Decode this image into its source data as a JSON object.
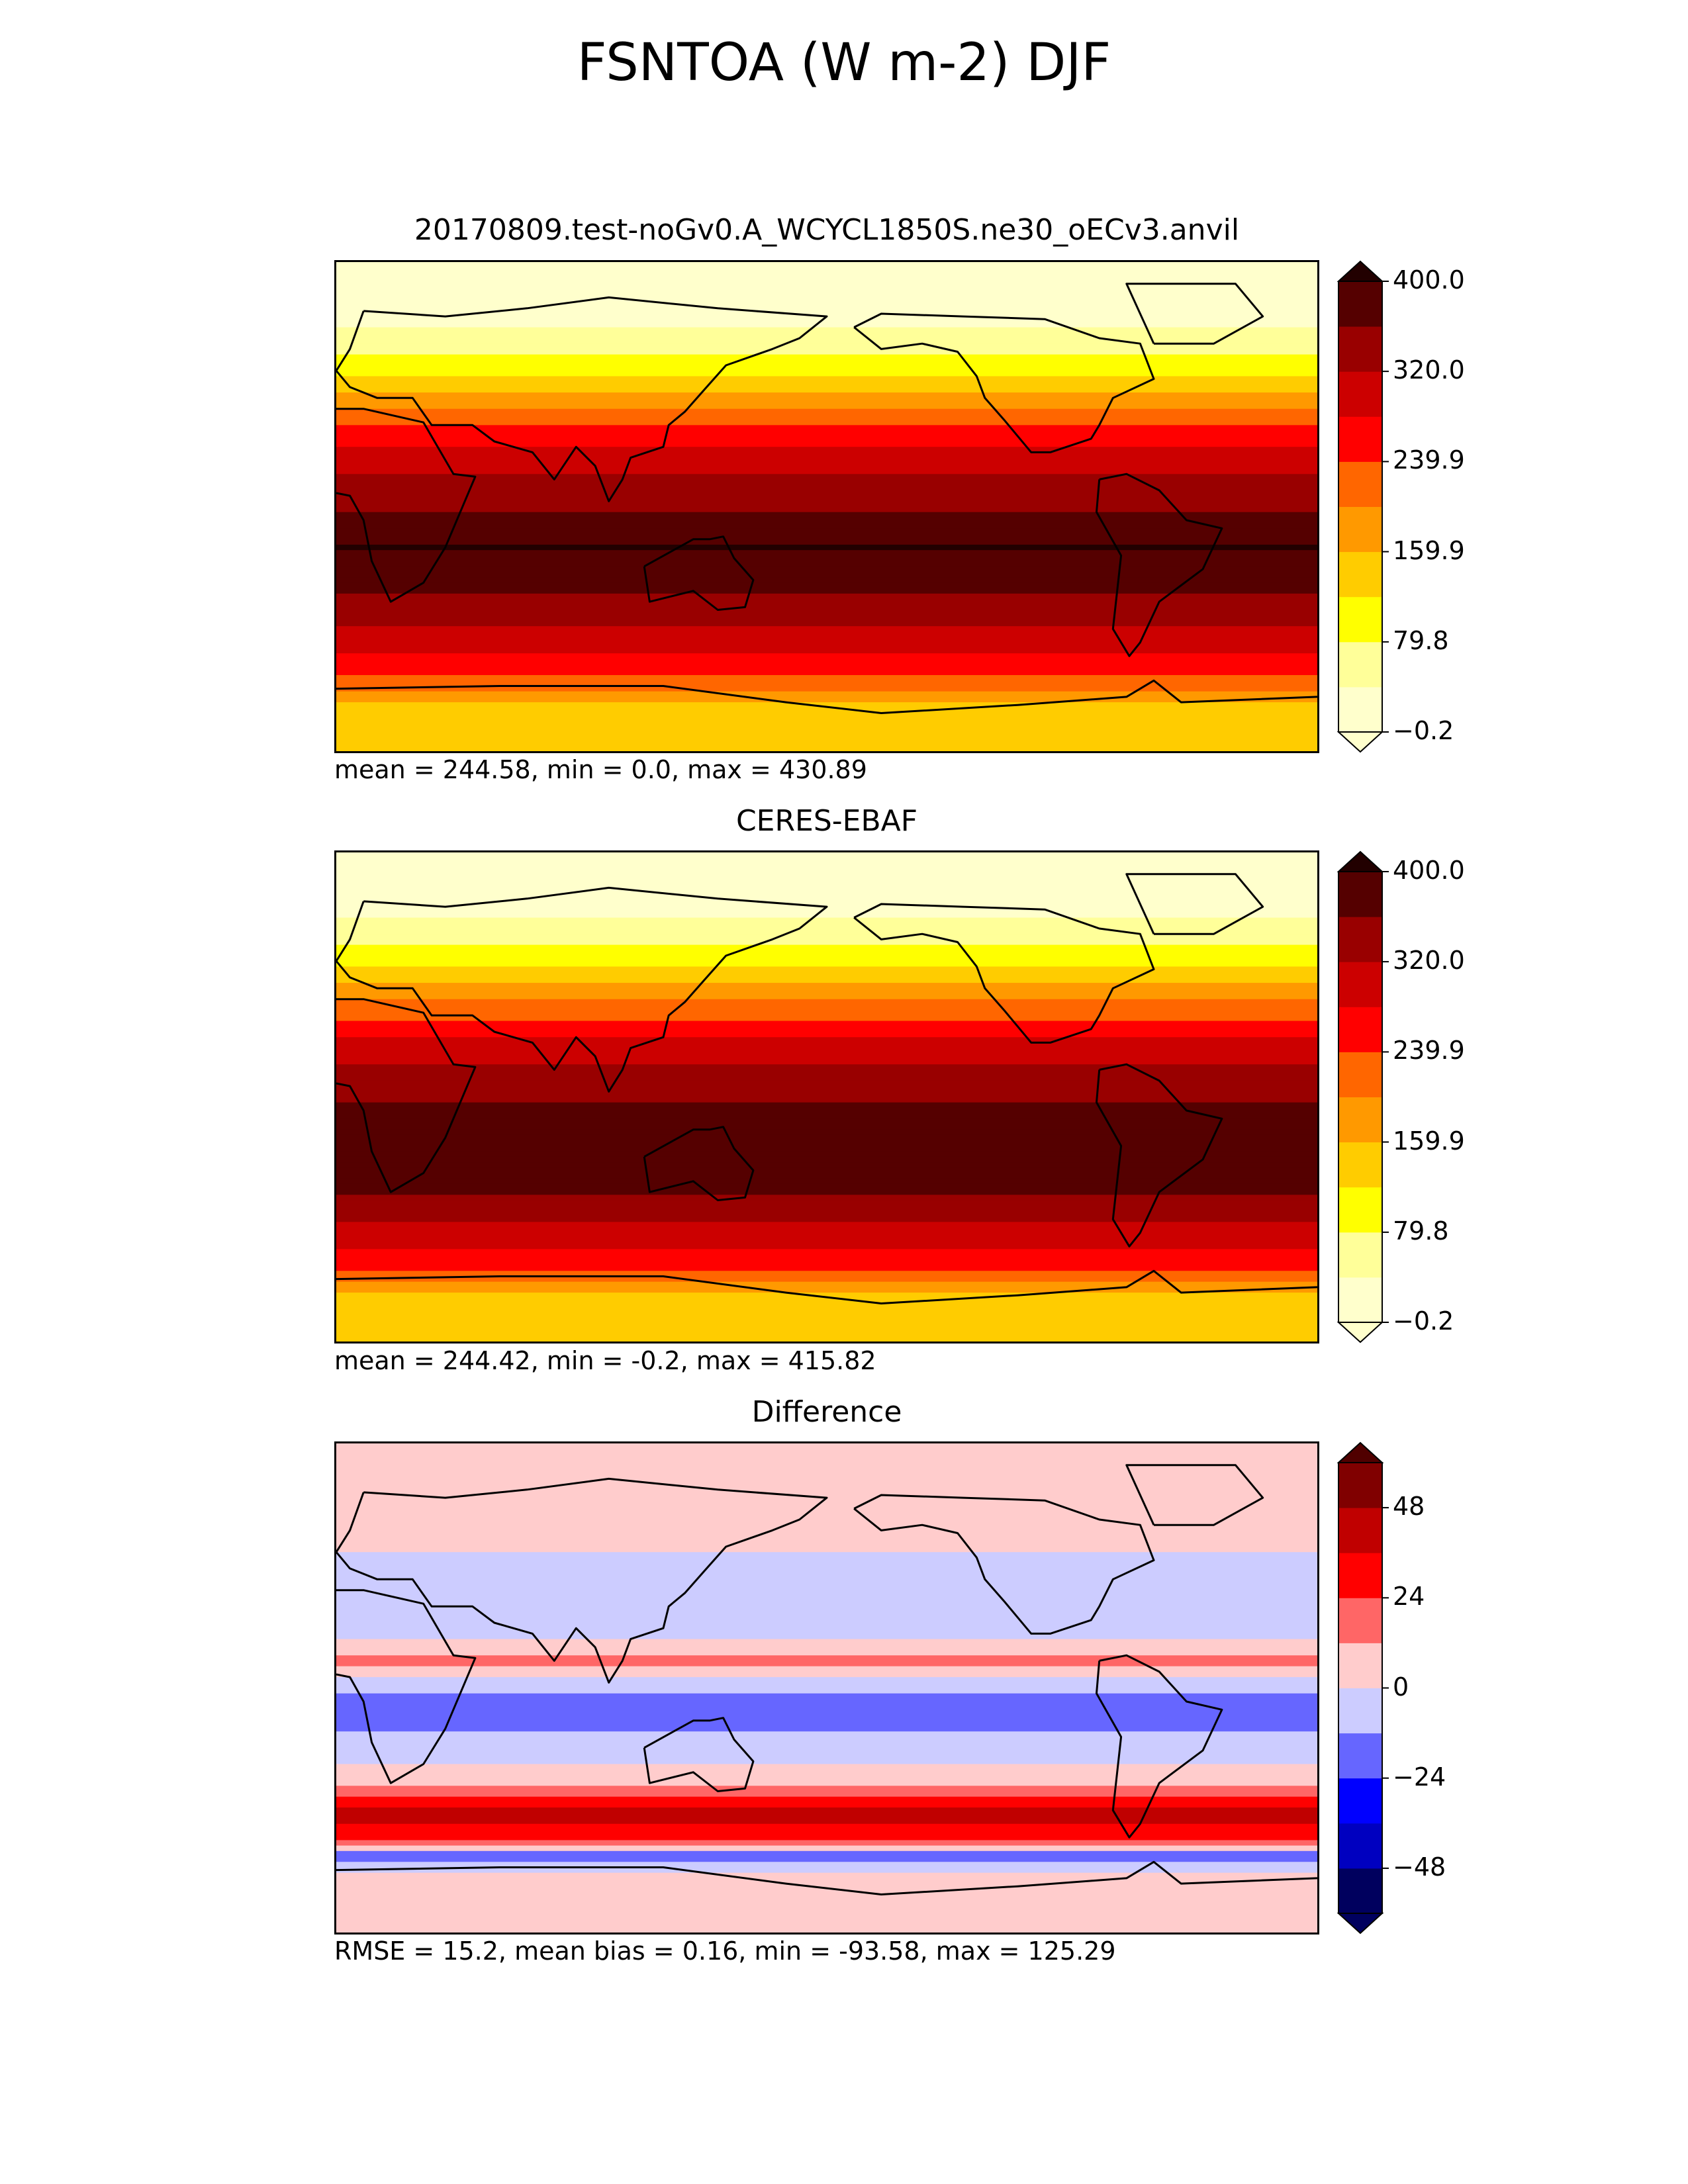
{
  "figure": {
    "title": "FSNTOA (W m-2) DJF"
  },
  "chart_data": [
    {
      "type": "heatmap",
      "title": "20170809.test-noGv0.A_WCYCL1850S.ne30_oECv3.anvil",
      "stats": "mean = 244.58, min = 0.0, max = 430.89",
      "colormap": "hot-reversed",
      "levels": [
        -0.2,
        39.8,
        79.8,
        119.9,
        159.9,
        199.9,
        239.9,
        280.0,
        320.0,
        360.0,
        400.0
      ],
      "colorbar_ticks": [
        "400.0",
        "320.0",
        "239.9",
        "159.9",
        "79.8",
        "−0.2"
      ],
      "colorbar_extend": "both",
      "zonal_profile": {
        "lat": [
          -90,
          -75,
          -65,
          -50,
          -35,
          -25,
          -15,
          0,
          15,
          25,
          35,
          45,
          60,
          75,
          90
        ],
        "value": [
          140,
          140,
          225,
          300,
          350,
          390,
          400,
          350,
          310,
          265,
          205,
          140,
          60,
          10,
          0
        ]
      }
    },
    {
      "type": "heatmap",
      "title": "CERES-EBAF",
      "stats": "mean = 244.42, min = -0.2, max = 415.82",
      "colormap": "hot-reversed",
      "levels": [
        -0.2,
        39.8,
        79.8,
        119.9,
        159.9,
        199.9,
        239.9,
        280.0,
        320.0,
        360.0,
        400.0
      ],
      "colorbar_ticks": [
        "400.0",
        "320.0",
        "239.9",
        "159.9",
        "79.8",
        "−0.2"
      ],
      "colorbar_extend": "both",
      "zonal_profile": {
        "lat": [
          -90,
          -75,
          -65,
          -50,
          -35,
          -25,
          -15,
          0,
          15,
          25,
          35,
          45,
          60,
          75,
          90
        ],
        "value": [
          140,
          140,
          230,
          305,
          360,
          390,
          395,
          355,
          310,
          265,
          200,
          135,
          55,
          10,
          0
        ]
      }
    },
    {
      "type": "heatmap",
      "title": "Difference",
      "stats": "RMSE = 15.2, mean bias = 0.16, min = -93.58, max = 125.29",
      "colormap": "seismic",
      "levels": [
        -60,
        -48,
        -36,
        -24,
        -12,
        0,
        12,
        24,
        36,
        48,
        60
      ],
      "colorbar_ticks": [
        "48",
        "24",
        "0",
        "−24",
        "−48"
      ],
      "colorbar_extend": "both",
      "zonal_profile": {
        "lat": [
          -90,
          -70,
          -62,
          -55,
          -45,
          -35,
          -20,
          -10,
          0,
          10,
          20,
          40,
          60,
          90
        ],
        "value": [
          5,
          5,
          -20,
          30,
          40,
          5,
          -5,
          -25,
          -10,
          15,
          -5,
          -5,
          5,
          5
        ]
      }
    }
  ]
}
